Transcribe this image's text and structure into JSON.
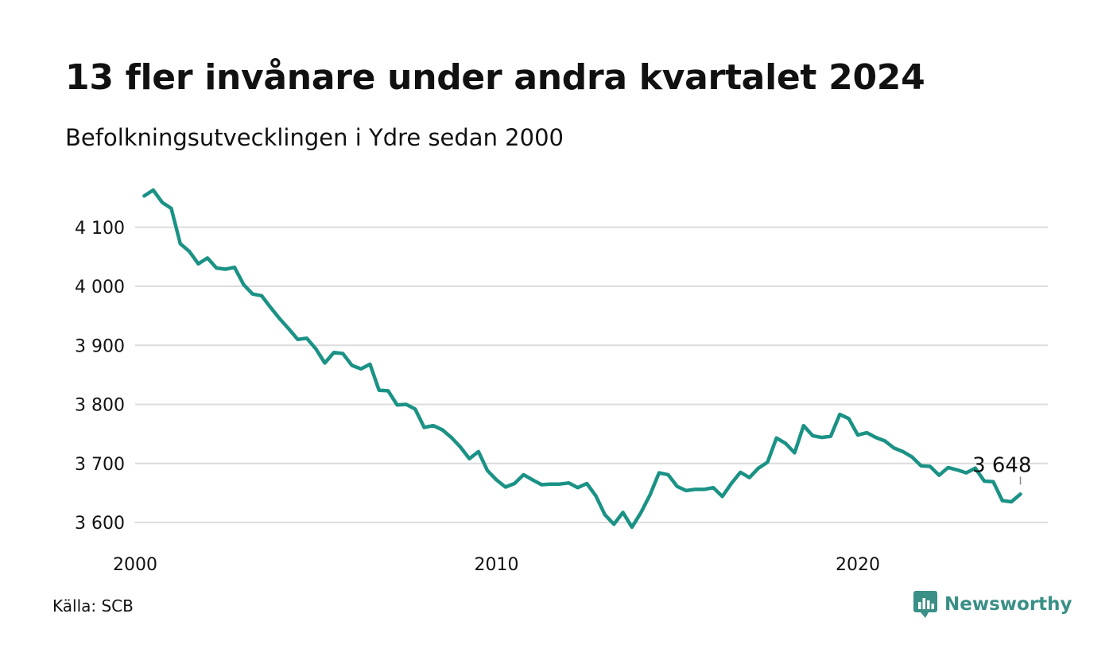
{
  "title": "13 fler invånare under andra kvartalet 2024",
  "subtitle": "Befolkningsutvecklingen i Ydre sedan 2000",
  "source": "Källa: SCB",
  "brand": {
    "name": "Newsworthy",
    "icon": "newsworthy-logo-icon",
    "color": "#3a8f86"
  },
  "chart_data": {
    "type": "line",
    "title": "13 fler invånare under andra kvartalet 2024",
    "subtitle": "Befolkningsutvecklingen i Ydre sedan 2000",
    "xlabel": "",
    "ylabel": "",
    "ylim": [
      3560,
      4180
    ],
    "xlim": [
      2000,
      2025
    ],
    "grid": true,
    "line_color": "#1a9285",
    "y_ticks": [
      3600,
      3700,
      3800,
      3900,
      4000,
      4100
    ],
    "y_tick_labels": [
      "3 600",
      "3 700",
      "3 800",
      "3 900",
      "4 000",
      "4 100"
    ],
    "x_ticks": [
      2000,
      2010,
      2020
    ],
    "x_tick_labels": [
      "2000",
      "2010",
      "2020"
    ],
    "end_label": "3 648",
    "series": [
      {
        "x": [
          "2000Q1",
          "2000Q2",
          "2000Q3",
          "2000Q4",
          "2001Q1",
          "2001Q2",
          "2001Q3",
          "2001Q4",
          "2002Q1",
          "2002Q2",
          "2002Q3",
          "2002Q4",
          "2003Q1",
          "2003Q2",
          "2003Q3",
          "2003Q4",
          "2004Q1",
          "2004Q2",
          "2004Q3",
          "2004Q4",
          "2005Q1",
          "2005Q2",
          "2005Q3",
          "2005Q4",
          "2006Q1",
          "2006Q2",
          "2006Q3",
          "2006Q4",
          "2007Q1",
          "2007Q2",
          "2007Q3",
          "2007Q4",
          "2008Q1",
          "2008Q2",
          "2008Q3",
          "2008Q4",
          "2009Q1",
          "2009Q2",
          "2009Q3",
          "2009Q4",
          "2010Q1",
          "2010Q2",
          "2010Q3",
          "2010Q4",
          "2011Q1",
          "2011Q2",
          "2011Q3",
          "2011Q4",
          "2012Q1",
          "2012Q2",
          "2012Q3",
          "2012Q4",
          "2013Q1",
          "2013Q2",
          "2013Q3",
          "2013Q4",
          "2014Q1",
          "2014Q2",
          "2014Q3",
          "2014Q4",
          "2015Q1",
          "2015Q2",
          "2015Q3",
          "2015Q4",
          "2016Q1",
          "2016Q2",
          "2016Q3",
          "2016Q4",
          "2017Q1",
          "2017Q2",
          "2017Q3",
          "2017Q4",
          "2018Q1",
          "2018Q2",
          "2018Q3",
          "2018Q4",
          "2019Q1",
          "2019Q2",
          "2019Q3",
          "2019Q4",
          "2020Q1",
          "2020Q2",
          "2020Q3",
          "2020Q4",
          "2021Q1",
          "2021Q2",
          "2021Q3",
          "2021Q4",
          "2022Q1",
          "2022Q2",
          "2022Q3",
          "2022Q4",
          "2023Q1",
          "2023Q2",
          "2023Q3",
          "2023Q4",
          "2024Q1",
          "2024Q2"
        ],
        "values": [
          4153,
          4163,
          4142,
          4132,
          4072,
          4059,
          4038,
          4048,
          4031,
          4029,
          4032,
          4003,
          3987,
          3984,
          3964,
          3945,
          3928,
          3910,
          3912,
          3894,
          3870,
          3888,
          3886,
          3866,
          3860,
          3868,
          3824,
          3823,
          3799,
          3800,
          3792,
          3761,
          3764,
          3757,
          3744,
          3728,
          3708,
          3720,
          3688,
          3672,
          3660,
          3666,
          3681,
          3672,
          3664,
          3665,
          3665,
          3667,
          3659,
          3666,
          3645,
          3613,
          3597,
          3617,
          3592,
          3617,
          3647,
          3684,
          3681,
          3661,
          3654,
          3656,
          3656,
          3659,
          3644,
          3666,
          3685,
          3676,
          3692,
          3702,
          3743,
          3734,
          3718,
          3764,
          3747,
          3744,
          3746,
          3783,
          3776,
          3748,
          3752,
          3744,
          3738,
          3726,
          3720,
          3711,
          3696,
          3695,
          3680,
          3693,
          3689,
          3684,
          3692,
          3670,
          3669,
          3637,
          3635,
          3648
        ]
      }
    ]
  }
}
